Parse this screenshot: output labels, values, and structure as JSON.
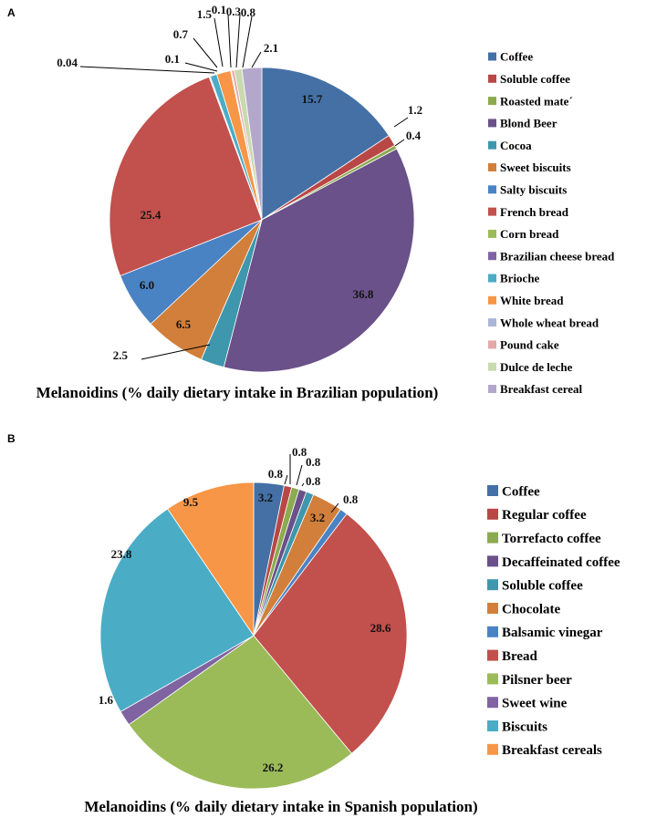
{
  "chart_data": [
    {
      "type": "pie",
      "panel": "A",
      "title": "Melanoidins (% daily dietary intake in Brazilian population)",
      "legend_position": "right",
      "slices": [
        {
          "label": "Coffee",
          "value": 15.7,
          "display": "15.7",
          "color": "#4470a5"
        },
        {
          "label": "Soluble coffee",
          "value": 1.2,
          "display": "1.2",
          "color": "#b94746"
        },
        {
          "label": "Roasted mate´",
          "value": 0.4,
          "display": "0.4",
          "color": "#8caa4f"
        },
        {
          "label": "Blond Beer",
          "value": 36.8,
          "display": "36.8",
          "color": "#6a5189"
        },
        {
          "label": "Cocoa",
          "value": 2.5,
          "display": "2.5",
          "color": "#3e97ac"
        },
        {
          "label": "Sweet biscuits",
          "value": 6.5,
          "display": "6.5",
          "color": "#d17f3a"
        },
        {
          "label": "Salty biscuits",
          "value": 6.0,
          "display": "6.0",
          "color": "#4a83c3"
        },
        {
          "label": "French bread",
          "value": 25.4,
          "display": "25.4",
          "color": "#c2504d"
        },
        {
          "label": "Corn bread",
          "value": 0.04,
          "display": "0.04",
          "color": "#9bbb59"
        },
        {
          "label": "Brazilian cheese bread",
          "value": 0.1,
          "display": "0.1",
          "color": "#8064a2"
        },
        {
          "label": "Brioche",
          "value": 0.7,
          "display": "0.7",
          "color": "#4bacc6"
        },
        {
          "label": "White bread",
          "value": 1.5,
          "display": "1.5",
          "color": "#f79646"
        },
        {
          "label": "Whole wheat bread",
          "value": 0.1,
          "display": "0.1",
          "color": "#a9b6d8"
        },
        {
          "label": "Pound cake",
          "value": 0.3,
          "display": "0.3",
          "color": "#e3a9a8"
        },
        {
          "label": "Dulce de leche",
          "value": 0.8,
          "display": "0.8",
          "color": "#c9dab0"
        },
        {
          "label": "Breakfast cereal",
          "value": 2.1,
          "display": "2.1",
          "color": "#b3a7cc"
        }
      ]
    },
    {
      "type": "pie",
      "panel": "B",
      "title": "Melanoidins (% daily dietary intake in Spanish population)",
      "legend_position": "right",
      "slices": [
        {
          "label": "Coffee",
          "value": 3.2,
          "display": "3.2",
          "color": "#4470a5"
        },
        {
          "label": "Regular coffee",
          "value": 0.8,
          "display": "0.8",
          "color": "#b94746"
        },
        {
          "label": "Torrefacto coffee",
          "value": 0.8,
          "display": "0.8",
          "color": "#8caa4f"
        },
        {
          "label": "Decaffeinated coffee",
          "value": 0.8,
          "display": "0.8",
          "color": "#6a5189"
        },
        {
          "label": "Soluble coffee",
          "value": 0.8,
          "display": "0.8",
          "color": "#3e97ac"
        },
        {
          "label": "Chocolate",
          "value": 3.2,
          "display": "3.2",
          "color": "#d17f3a"
        },
        {
          "label": "Balsamic vinegar",
          "value": 0.8,
          "display": "0.8",
          "color": "#4a83c3"
        },
        {
          "label": "Bread",
          "value": 28.6,
          "display": "28.6",
          "color": "#c2504d"
        },
        {
          "label": "Pilsner beer",
          "value": 26.2,
          "display": "26.2",
          "color": "#9bbb59"
        },
        {
          "label": "Sweet wine",
          "value": 1.6,
          "display": "1.6",
          "color": "#8064a2"
        },
        {
          "label": "Biscuits",
          "value": 23.8,
          "display": "23.8",
          "color": "#4bacc6"
        },
        {
          "label": "Breakfast cereals",
          "value": 9.5,
          "display": "9.5",
          "color": "#f79646"
        }
      ]
    }
  ]
}
